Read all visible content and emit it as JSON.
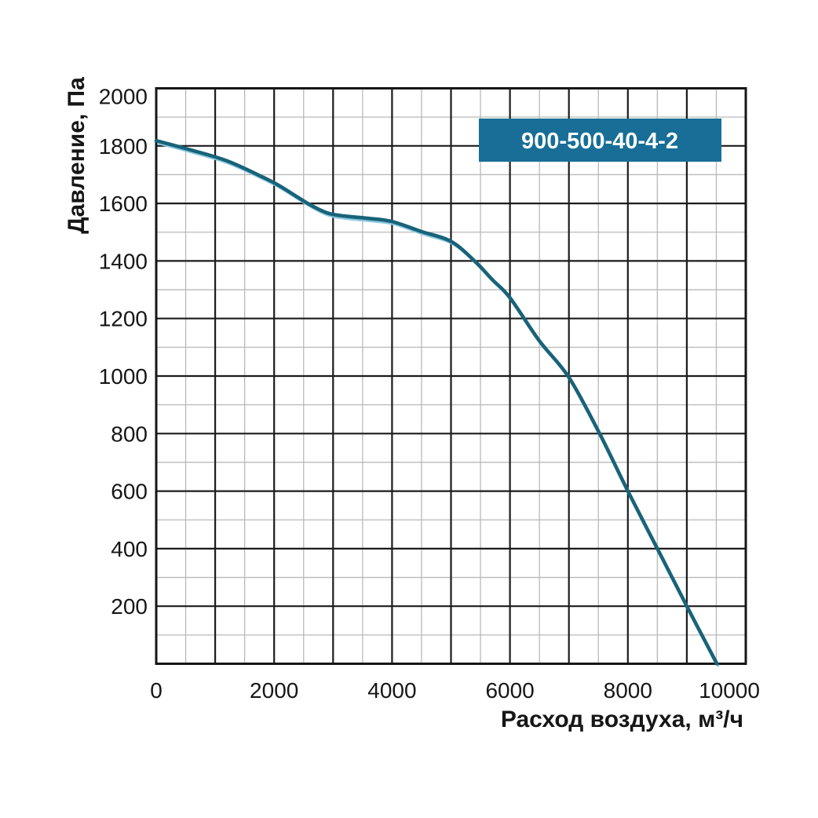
{
  "chart_data": {
    "type": "line",
    "title": "",
    "series_label": "900-500-40-4-2",
    "xlabel": "Расход воздуха, м³/ч",
    "ylabel": "Давление, Па",
    "xlim": [
      0,
      10000
    ],
    "ylim": [
      0,
      2000
    ],
    "x_major_step": 1000,
    "x_minor_step": 500,
    "y_major_step": 200,
    "y_minor_step": 100,
    "grid": "major+minor",
    "legend_position": "none",
    "x_ticks": [
      {
        "value": 0,
        "label": "0"
      },
      {
        "value": 2000,
        "label": "2000"
      },
      {
        "value": 4000,
        "label": "4000"
      },
      {
        "value": 6000,
        "label": "6000"
      },
      {
        "value": 8000,
        "label": "8000"
      },
      {
        "value": 10000,
        "label": "10000"
      }
    ],
    "y_ticks": [
      {
        "value": 200,
        "label": "200"
      },
      {
        "value": 400,
        "label": "400"
      },
      {
        "value": 600,
        "label": "600"
      },
      {
        "value": 800,
        "label": "800"
      },
      {
        "value": 1000,
        "label": "1000"
      },
      {
        "value": 1200,
        "label": "1200"
      },
      {
        "value": 1400,
        "label": "1400"
      },
      {
        "value": 1600,
        "label": "1600"
      },
      {
        "value": 1800,
        "label": "1800"
      },
      {
        "value": 2000,
        "label": "2000"
      }
    ],
    "series": [
      {
        "name": "900-500-40-4-2",
        "points": [
          [
            0,
            1818
          ],
          [
            600,
            1785
          ],
          [
            1200,
            1748
          ],
          [
            1800,
            1692
          ],
          [
            2100,
            1660
          ],
          [
            2570,
            1600
          ],
          [
            2900,
            1567
          ],
          [
            3200,
            1556
          ],
          [
            3600,
            1548
          ],
          [
            4000,
            1537
          ],
          [
            4500,
            1502
          ],
          [
            5000,
            1468
          ],
          [
            5400,
            1400
          ],
          [
            5700,
            1335
          ],
          [
            6000,
            1272
          ],
          [
            6500,
            1122
          ],
          [
            7000,
            995
          ],
          [
            7520,
            800
          ],
          [
            8000,
            600
          ],
          [
            8500,
            400
          ],
          [
            9000,
            200
          ],
          [
            9510,
            0
          ]
        ]
      }
    ],
    "colors": {
      "curve": "#186379",
      "curve_halo": "#8CC9E2",
      "grid_major": "#1c1c1c",
      "grid_minor": "#b9b9b9",
      "plot_border": "#161616",
      "badge_fill": "#186E96",
      "badge_text": "#ffffff",
      "text": "#161616",
      "background": "#ffffff"
    }
  }
}
